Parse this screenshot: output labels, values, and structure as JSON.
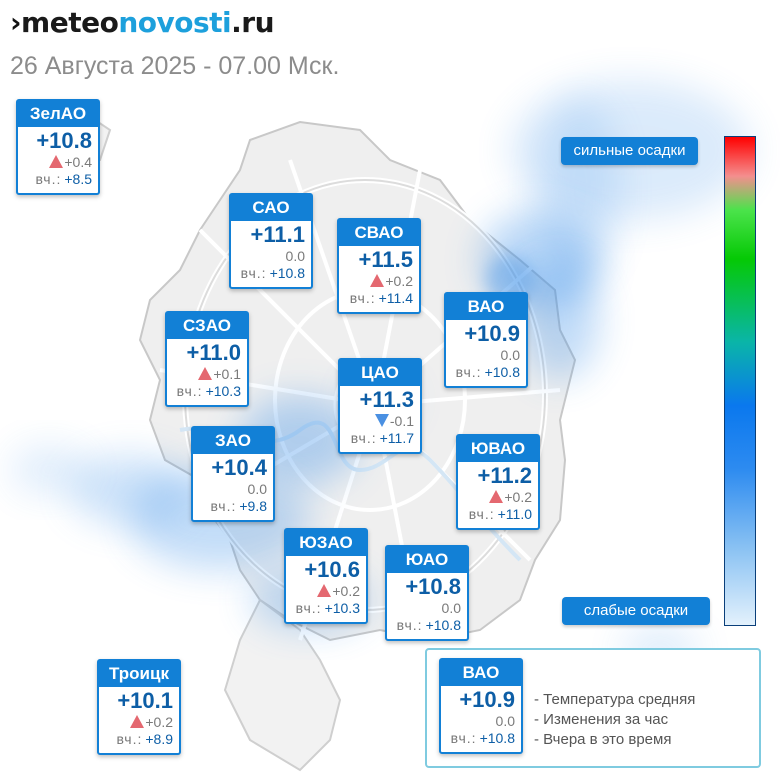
{
  "header": {
    "logo_prefix": "›",
    "logo_part1": "meteo",
    "logo_part2": "novosti",
    "logo_part3": ".ru",
    "datetime": "26 Августа 2025 - 07.00 Мск."
  },
  "yesterday_label": "вч.:",
  "districts": [
    {
      "name": "ЗелАО",
      "temp": "+10.8",
      "trend": "up",
      "delta": "+0.4",
      "yesterday": "+8.5"
    },
    {
      "name": "САО",
      "temp": "+11.1",
      "trend": "none",
      "delta": "0.0",
      "yesterday": "+10.8"
    },
    {
      "name": "СВАО",
      "temp": "+11.5",
      "trend": "up",
      "delta": "+0.2",
      "yesterday": "+11.4"
    },
    {
      "name": "ВАО",
      "temp": "+10.9",
      "trend": "none",
      "delta": "0.0",
      "yesterday": "+10.8"
    },
    {
      "name": "СЗАО",
      "temp": "+11.0",
      "trend": "up",
      "delta": "+0.1",
      "yesterday": "+10.3"
    },
    {
      "name": "ЦАО",
      "temp": "+11.3",
      "trend": "down",
      "delta": "-0.1",
      "yesterday": "+11.7"
    },
    {
      "name": "ЗАО",
      "temp": "+10.4",
      "trend": "none",
      "delta": "0.0",
      "yesterday": "+9.8"
    },
    {
      "name": "ЮВАО",
      "temp": "+11.2",
      "trend": "up",
      "delta": "+0.2",
      "yesterday": "+11.0"
    },
    {
      "name": "ЮЗАО",
      "temp": "+10.6",
      "trend": "up",
      "delta": "+0.2",
      "yesterday": "+10.3"
    },
    {
      "name": "ЮАО",
      "temp": "+10.8",
      "trend": "none",
      "delta": "0.0",
      "yesterday": "+10.8"
    },
    {
      "name": "Троицк",
      "temp": "+10.1",
      "trend": "up",
      "delta": "+0.2",
      "yesterday": "+8.9"
    }
  ],
  "precip_scale": {
    "strong_label": "сильные осадки",
    "weak_label": "слабые осадки"
  },
  "legend": {
    "sample": {
      "name": "ВАО",
      "temp": "+10.9",
      "trend": "none",
      "delta": "0.0",
      "yesterday": "+10.8"
    },
    "lines": [
      "- Температура средняя",
      "- Изменения за час",
      "- Вчера в это время"
    ]
  },
  "colors": {
    "card_header": "#1280d6",
    "temp_text": "#0d5ea6",
    "trend_up": "#e46870",
    "trend_down": "#4a90e2",
    "logo_accent": "#1da0dc"
  }
}
